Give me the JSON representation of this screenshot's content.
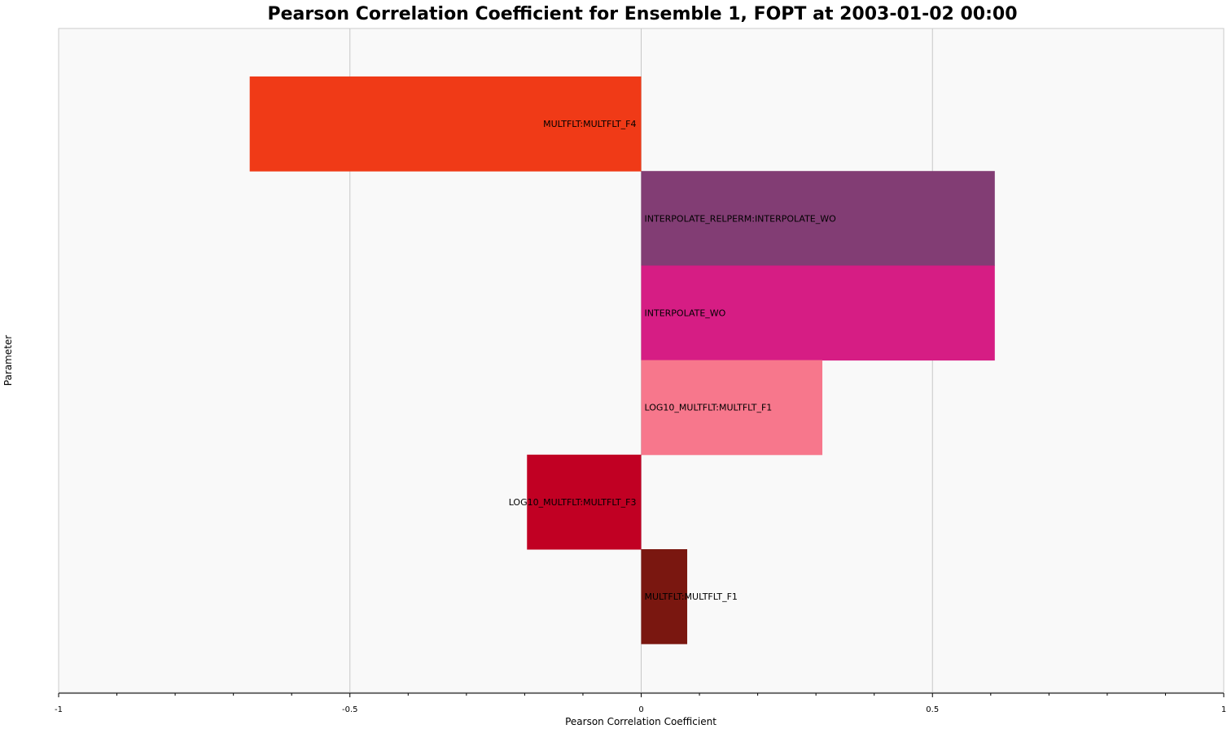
{
  "chart_data": {
    "type": "bar",
    "orientation": "horizontal",
    "title": "Pearson Correlation Coefficient for Ensemble 1, FOPT at 2003-01-02 00:00",
    "xlabel": "Pearson Correlation Coefficient",
    "ylabel": "Parameter",
    "xlim": [
      -1,
      1
    ],
    "xticks": [
      -1,
      -0.5,
      0,
      0.5,
      1
    ],
    "xtick_labels": [
      "-1",
      "-0.5",
      "0",
      "0.5",
      "1"
    ],
    "grid": true,
    "legend": "none",
    "bars": [
      {
        "label": "MULTFLT:MULTFLT_F4",
        "value": -0.672,
        "color": "#F03A17"
      },
      {
        "label": "INTERPOLATE_RELPERM:INTERPOLATE_WO",
        "value": 0.607,
        "color": "#823D74"
      },
      {
        "label": "INTERPOLATE_WO",
        "value": 0.607,
        "color": "#D61D84"
      },
      {
        "label": "LOG10_MULTFLT:MULTFLT_F1",
        "value": 0.311,
        "color": "#F7778C"
      },
      {
        "label": "LOG10_MULTFLT:MULTFLT_F3",
        "value": -0.196,
        "color": "#C10023"
      },
      {
        "label": "MULTFLT:MULTFLT_F1",
        "value": 0.079,
        "color": "#7A1710"
      }
    ]
  }
}
